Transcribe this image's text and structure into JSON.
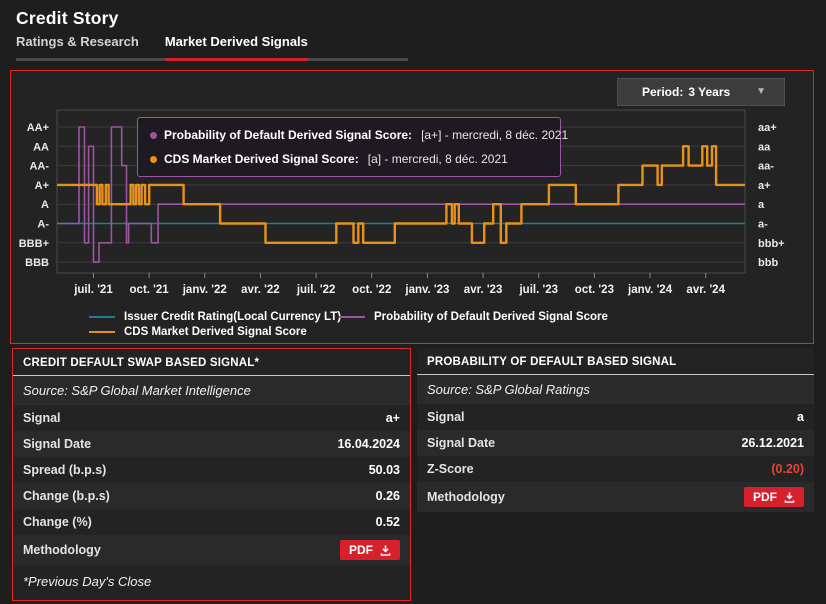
{
  "page": {
    "title": "Credit Story"
  },
  "tabs": [
    {
      "label": "Ratings & Research",
      "active": false
    },
    {
      "label": "Market Derived Signals",
      "active": true
    }
  ],
  "period": {
    "label": "Period:",
    "value": "3 Years"
  },
  "colors": {
    "accent_red": "#d6202c",
    "panel_border_red": "#e02827",
    "orange": "#e8921c",
    "purple": "#9a57a0",
    "teal": "#1f7f8e",
    "negative_value": "#e8433c"
  },
  "tooltip": {
    "rows": [
      {
        "bullet_color": "#9a57a0",
        "label": "Probability of Default Derived Signal Score:",
        "value": "[a+] - mercredi, 8 déc. 2021"
      },
      {
        "bullet_color": "#e8921c",
        "label": "CDS Market Derived Signal Score:",
        "value": "[a] - mercredi, 8 déc. 2021"
      }
    ]
  },
  "chart_data": {
    "type": "line",
    "title": "Market Derived Signals history",
    "y_labels_left": [
      "AA+",
      "AA",
      "AA-",
      "A+",
      "A",
      "A-",
      "BBB+",
      "BBB"
    ],
    "y_labels_right": [
      "aa+",
      "aa",
      "aa-",
      "a+",
      "a",
      "a-",
      "bbb+",
      "bbb"
    ],
    "x_ticks": [
      "juil. '21",
      "oct. '21",
      "janv. '22",
      "avr. '22",
      "juil. '22",
      "oct. '22",
      "janv. '23",
      "avr. '23",
      "juil. '23",
      "oct. '23",
      "janv. '24",
      "avr. '24"
    ],
    "grid": true,
    "legend_position": "bottom",
    "series": [
      {
        "name": "Issuer Credit Rating(Local Currency LT)",
        "color": "#1f7f8e",
        "width": 1.6,
        "steps": [
          [
            0,
            "A-"
          ],
          [
            1,
            "A-"
          ]
        ]
      },
      {
        "name": "Probability of Default Derived Signal Score",
        "color": "#9a57a0",
        "width": 1.6,
        "steps": [
          [
            0,
            "A-"
          ],
          [
            0.032,
            "AA+"
          ],
          [
            0.04,
            "BBB+"
          ],
          [
            0.046,
            "AA"
          ],
          [
            0.053,
            "BBB"
          ],
          [
            0.061,
            "BBB+"
          ],
          [
            0.079,
            "AA+"
          ],
          [
            0.094,
            "AA-"
          ],
          [
            0.101,
            "BBB+"
          ],
          [
            0.104,
            "A-"
          ],
          [
            0.137,
            "BBB+"
          ],
          [
            0.147,
            "A"
          ],
          [
            1,
            "A"
          ]
        ]
      },
      {
        "name": "CDS Market Derived Signal Score",
        "color": "#e8921c",
        "width": 2.4,
        "steps": [
          [
            0,
            "A+"
          ],
          [
            0.058,
            "A"
          ],
          [
            0.062,
            "A+"
          ],
          [
            0.066,
            "A"
          ],
          [
            0.071,
            "A+"
          ],
          [
            0.075,
            "A"
          ],
          [
            0.107,
            "A+"
          ],
          [
            0.111,
            "A"
          ],
          [
            0.115,
            "A+"
          ],
          [
            0.119,
            "A"
          ],
          [
            0.123,
            "A+"
          ],
          [
            0.128,
            "A"
          ],
          [
            0.134,
            "A+"
          ],
          [
            0.184,
            "A"
          ],
          [
            0.237,
            "A-"
          ],
          [
            0.303,
            "BBB+"
          ],
          [
            0.406,
            "A-"
          ],
          [
            0.431,
            "BBB+"
          ],
          [
            0.438,
            "A-"
          ],
          [
            0.445,
            "BBB+"
          ],
          [
            0.491,
            "A-"
          ],
          [
            0.566,
            "A"
          ],
          [
            0.574,
            "A-"
          ],
          [
            0.578,
            "A"
          ],
          [
            0.584,
            "A-"
          ],
          [
            0.603,
            "BBB+"
          ],
          [
            0.621,
            "A-"
          ],
          [
            0.634,
            "A"
          ],
          [
            0.645,
            "BBB+"
          ],
          [
            0.653,
            "A-"
          ],
          [
            0.675,
            "A"
          ],
          [
            0.715,
            "A+"
          ],
          [
            0.754,
            "A"
          ],
          [
            0.816,
            "A+"
          ],
          [
            0.851,
            "AA-"
          ],
          [
            0.873,
            "A+"
          ],
          [
            0.879,
            "AA-"
          ],
          [
            0.91,
            "AA"
          ],
          [
            0.918,
            "AA-"
          ],
          [
            0.938,
            "AA"
          ],
          [
            0.945,
            "AA-"
          ],
          [
            0.952,
            "AA"
          ],
          [
            0.958,
            "A+"
          ],
          [
            1,
            "A+"
          ]
        ]
      }
    ]
  },
  "tables": [
    {
      "title": "CREDIT DEFAULT SWAP BASED SIGNAL*",
      "source": "Source: S&P Global Market Intelligence",
      "rows": [
        {
          "label": "Signal",
          "value": "a+"
        },
        {
          "label": "Signal Date",
          "value": "16.04.2024"
        },
        {
          "label": "Spread (b.p.s)",
          "value": "50.03"
        },
        {
          "label": "Change (b.p.s)",
          "value": "0.26"
        },
        {
          "label": "Change (%)",
          "value": "0.52"
        },
        {
          "label": "Methodology",
          "value": "PDF"
        }
      ],
      "footnote": "*Previous Day's Close"
    },
    {
      "title": "PROBABILITY OF DEFAULT BASED SIGNAL",
      "source": "Source: S&P Global Ratings",
      "rows": [
        {
          "label": "Signal",
          "value": "a"
        },
        {
          "label": "Signal Date",
          "value": "26.12.2021"
        },
        {
          "label": "Z-Score",
          "value": "(0.20)"
        },
        {
          "label": "Methodology",
          "value": "PDF"
        }
      ]
    }
  ]
}
